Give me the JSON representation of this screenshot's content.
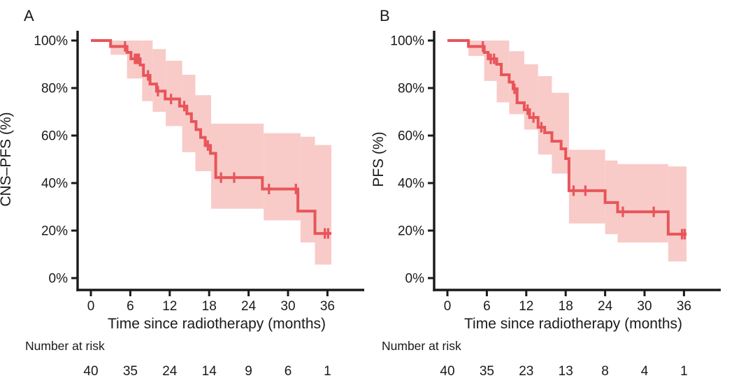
{
  "figure": {
    "panels": [
      {
        "label": "A",
        "y_axis_title": "CNS–PFS (%)",
        "x_axis_title": "Time since radiotherapy (months)",
        "risk_header": "Number at risk"
      },
      {
        "label": "B",
        "y_axis_title": "PFS (%)",
        "x_axis_title": "Time since radiotherapy (months)",
        "risk_header": "Number at risk"
      }
    ]
  },
  "chart_data": [
    {
      "type": "line",
      "subtype": "kaplan-meier",
      "panel": "A",
      "xlabel": "Time since radiotherapy (months)",
      "ylabel": "CNS–PFS (%)",
      "xlim": [
        0,
        41
      ],
      "ylim": [
        0,
        100
      ],
      "xticks": [
        0,
        6,
        12,
        18,
        24,
        30,
        36
      ],
      "xtick_labels": [
        "0",
        "6",
        "12",
        "18",
        "24",
        "30",
        "36"
      ],
      "yticks": [
        0,
        20,
        40,
        60,
        80,
        100
      ],
      "ytick_labels": [
        "0%",
        "20%",
        "40%",
        "60%",
        "80%",
        "100%"
      ],
      "grid": false,
      "legend": "none",
      "series": [
        {
          "name": "CNS-PFS",
          "color": "#e8555a",
          "ci_color": "#f8cbc8",
          "steps": [
            [
              0,
              100
            ],
            [
              3.0,
              97.5
            ],
            [
              5.5,
              95
            ],
            [
              6.1,
              92.3
            ],
            [
              7.5,
              89.7
            ],
            [
              8.0,
              85.3
            ],
            [
              9.0,
              81.7
            ],
            [
              10.0,
              78.7
            ],
            [
              11.3,
              75.4
            ],
            [
              13.5,
              72.4
            ],
            [
              14.6,
              69.2
            ],
            [
              15.3,
              65.9
            ],
            [
              16.0,
              62.5
            ],
            [
              16.7,
              59.2
            ],
            [
              17.4,
              55.8
            ],
            [
              18.2,
              52.5
            ],
            [
              19.0,
              42.3
            ],
            [
              26.1,
              37.5
            ],
            [
              31.5,
              28.2
            ],
            [
              34.1,
              18.8
            ],
            [
              36.6,
              18.8
            ]
          ],
          "censor_marks": [
            [
              5.2,
              97.5
            ],
            [
              6.7,
              92.3
            ],
            [
              7.0,
              92.3
            ],
            [
              7.3,
              92.3
            ],
            [
              8.7,
              85.3
            ],
            [
              10.2,
              78.7
            ],
            [
              12.2,
              75.4
            ],
            [
              14.2,
              72.4
            ],
            [
              17.8,
              55.8
            ],
            [
              19.8,
              42.3
            ],
            [
              21.8,
              42.3
            ],
            [
              27.1,
              37.5
            ],
            [
              31.2,
              37.5
            ],
            [
              35.6,
              18.8
            ],
            [
              36.1,
              18.8
            ]
          ],
          "ci_segments": [
            [
              3.0,
              5.5,
              100,
              94
            ],
            [
              5.5,
              7.8,
              100,
              84
            ],
            [
              7.8,
              9.4,
              100,
              74.5
            ],
            [
              9.4,
              11.4,
              96.4,
              70
            ],
            [
              11.4,
              13.9,
              91.5,
              64
            ],
            [
              13.9,
              15.9,
              85.6,
              53
            ],
            [
              15.9,
              18.3,
              77,
              45
            ],
            [
              18.3,
              26.3,
              65,
              29.2
            ],
            [
              26.3,
              31.9,
              61,
              24.3
            ],
            [
              31.9,
              34.1,
              59.5,
              15
            ],
            [
              34.1,
              36.6,
              56,
              5.7
            ]
          ]
        }
      ],
      "number_at_risk": {
        "times": [
          0,
          6,
          12,
          18,
          24,
          30,
          36
        ],
        "counts": [
          "40",
          "35",
          "24",
          "14",
          "9",
          "6",
          "1"
        ]
      }
    },
    {
      "type": "line",
      "subtype": "kaplan-meier",
      "panel": "B",
      "xlabel": "Time since radiotherapy (months)",
      "ylabel": "PFS (%)",
      "xlim": [
        0,
        41
      ],
      "ylim": [
        0,
        100
      ],
      "xticks": [
        0,
        6,
        12,
        18,
        24,
        30,
        36
      ],
      "xtick_labels": [
        "0",
        "6",
        "12",
        "18",
        "24",
        "30",
        "36"
      ],
      "yticks": [
        0,
        20,
        40,
        60,
        80,
        100
      ],
      "ytick_labels": [
        "0%",
        "20%",
        "40%",
        "60%",
        "80%",
        "100%"
      ],
      "grid": false,
      "legend": "none",
      "series": [
        {
          "name": "PFS",
          "color": "#e8555a",
          "ci_color": "#f8cbc8",
          "steps": [
            [
              0,
              100
            ],
            [
              3.2,
              97.5
            ],
            [
              5.6,
              95
            ],
            [
              6.2,
              92.3
            ],
            [
              7.5,
              90
            ],
            [
              8.2,
              85.6
            ],
            [
              9.4,
              82.5
            ],
            [
              10.0,
              79.7
            ],
            [
              10.6,
              73.8
            ],
            [
              11.7,
              70.9
            ],
            [
              12.5,
              67.6
            ],
            [
              13.8,
              63.5
            ],
            [
              14.8,
              61.2
            ],
            [
              15.9,
              57.6
            ],
            [
              17.3,
              54.4
            ],
            [
              18.0,
              50.3
            ],
            [
              18.5,
              36.8
            ],
            [
              24.0,
              31.8
            ],
            [
              25.9,
              27.9
            ],
            [
              33.6,
              18.5
            ],
            [
              36.4,
              18.5
            ]
          ],
          "censor_marks": [
            [
              5.4,
              97.5
            ],
            [
              6.6,
              92.3
            ],
            [
              7.1,
              92.3
            ],
            [
              10.2,
              79.7
            ],
            [
              12.2,
              70.9
            ],
            [
              13.1,
              67.6
            ],
            [
              14.3,
              63.5
            ],
            [
              19.2,
              36.8
            ],
            [
              21.0,
              36.8
            ],
            [
              26.7,
              27.9
            ],
            [
              31.4,
              27.9
            ],
            [
              35.7,
              18.5
            ],
            [
              36.1,
              18.5
            ]
          ],
          "ci_segments": [
            [
              3.2,
              5.6,
              100,
              93.5
            ],
            [
              5.6,
              7.5,
              100,
              83
            ],
            [
              7.5,
              9.4,
              100,
              74
            ],
            [
              9.4,
              11.7,
              95.5,
              69
            ],
            [
              11.7,
              13.8,
              90,
              62.5
            ],
            [
              13.8,
              15.9,
              85,
              52
            ],
            [
              15.9,
              18.5,
              78,
              44
            ],
            [
              18.5,
              24.0,
              54,
              23
            ],
            [
              24.0,
              25.9,
              49.5,
              18.5
            ],
            [
              25.9,
              33.6,
              48,
              15
            ],
            [
              33.6,
              36.4,
              47,
              7
            ]
          ]
        }
      ],
      "number_at_risk": {
        "times": [
          0,
          6,
          12,
          18,
          24,
          30,
          36
        ],
        "counts": [
          "40",
          "35",
          "23",
          "13",
          "8",
          "4",
          "1"
        ]
      }
    }
  ]
}
